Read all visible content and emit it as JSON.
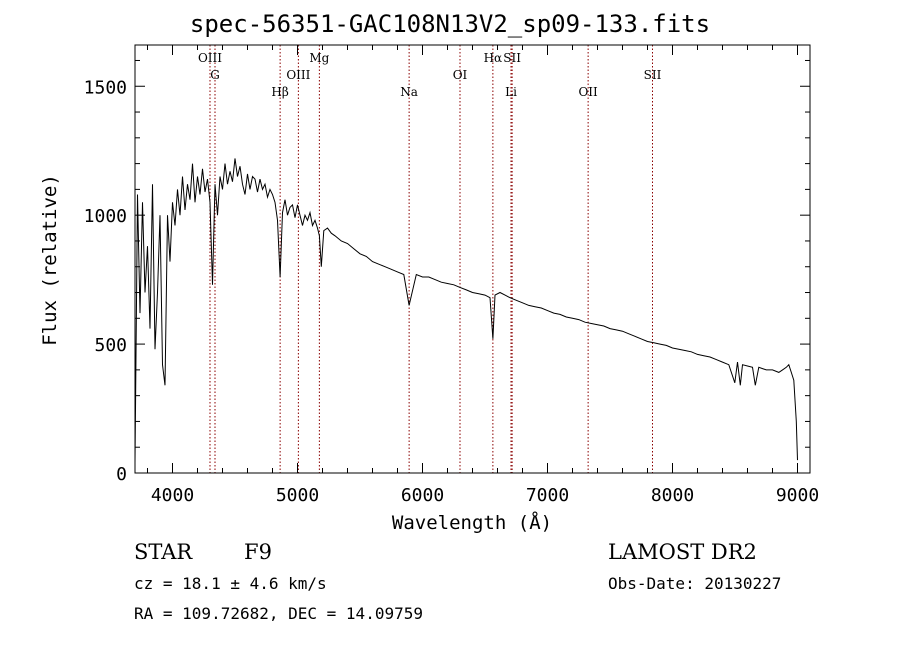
{
  "header": {
    "title": "spec-56351-GAC108N13V2_sp09-133.fits"
  },
  "info": {
    "class_label": "STAR",
    "subclass": "F9",
    "cz": "cz = 18.1 ± 4.6 km/s",
    "radec": "RA = 109.72682, DEC =  14.09759",
    "survey": "LAMOST DR2",
    "obs_date": "Obs-Date: 20130227"
  },
  "chart_data": {
    "type": "line",
    "title": "spec-56351-GAC108N13V2_sp09-133.fits",
    "xlabel": "Wavelength (Å)",
    "ylabel": "Flux (relative)",
    "xlim": [
      3700,
      9100
    ],
    "ylim": [
      0,
      1660
    ],
    "x_ticks": [
      4000,
      5000,
      6000,
      7000,
      8000,
      9000
    ],
    "y_ticks": [
      0,
      500,
      1000,
      1500
    ],
    "grid": false,
    "line_color": "#000000",
    "marker_color": "#8b0000",
    "lines": [
      {
        "name": "OIII",
        "x": 4300,
        "row": 0,
        "html": "OIII"
      },
      {
        "name": "G",
        "x": 4340,
        "row": 1,
        "html": "G"
      },
      {
        "name": "Hβ",
        "x": 4861,
        "row": 2,
        "html": "Hβ"
      },
      {
        "name": "OIII",
        "x": 5007,
        "row": 1,
        "html": "OIII"
      },
      {
        "name": "Mg",
        "x": 5175,
        "row": 0,
        "html": "Mg"
      },
      {
        "name": "Na",
        "x": 5893,
        "row": 2,
        "html": "Na"
      },
      {
        "name": "OI",
        "x": 6300,
        "row": 1,
        "html": "OI"
      },
      {
        "name": "Hα",
        "x": 6563,
        "row": 0,
        "html": "Hα"
      },
      {
        "name": "SII",
        "x": 6717,
        "row": 0,
        "html": "SII"
      },
      {
        "name": "Li",
        "x": 6708,
        "row": 2,
        "html": "Li"
      },
      {
        "name": "OII",
        "x": 7325,
        "row": 2,
        "html": "OII"
      },
      {
        "name": "SII",
        "x": 7840,
        "row": 1,
        "html": "SII"
      }
    ],
    "spectrum": {
      "x": [
        3700,
        3720,
        3740,
        3760,
        3780,
        3800,
        3820,
        3840,
        3860,
        3880,
        3900,
        3920,
        3940,
        3960,
        3980,
        4000,
        4020,
        4040,
        4060,
        4080,
        4100,
        4120,
        4140,
        4160,
        4180,
        4200,
        4220,
        4240,
        4260,
        4280,
        4300,
        4320,
        4340,
        4360,
        4380,
        4400,
        4420,
        4440,
        4460,
        4480,
        4500,
        4520,
        4540,
        4560,
        4580,
        4600,
        4620,
        4640,
        4660,
        4680,
        4700,
        4720,
        4740,
        4760,
        4780,
        4800,
        4820,
        4840,
        4861,
        4880,
        4900,
        4920,
        4940,
        4960,
        4980,
        5000,
        5020,
        5040,
        5060,
        5080,
        5100,
        5120,
        5140,
        5160,
        5175,
        5190,
        5210,
        5240,
        5270,
        5300,
        5350,
        5400,
        5450,
        5500,
        5550,
        5600,
        5650,
        5700,
        5750,
        5800,
        5850,
        5893,
        5950,
        6000,
        6050,
        6100,
        6150,
        6200,
        6250,
        6300,
        6350,
        6400,
        6450,
        6500,
        6540,
        6563,
        6580,
        6620,
        6660,
        6700,
        6750,
        6800,
        6850,
        6900,
        6950,
        7000,
        7050,
        7100,
        7150,
        7200,
        7250,
        7300,
        7350,
        7400,
        7450,
        7500,
        7550,
        7600,
        7650,
        7700,
        7750,
        7800,
        7850,
        7900,
        7950,
        8000,
        8050,
        8100,
        8150,
        8200,
        8250,
        8300,
        8350,
        8400,
        8450,
        8498,
        8520,
        8542,
        8560,
        8600,
        8640,
        8662,
        8690,
        8720,
        8750,
        8800,
        8850,
        8880,
        8910,
        8930,
        8950,
        8970,
        8990,
        9000
      ],
      "y": [
        40,
        1080,
        620,
        1050,
        700,
        880,
        560,
        1120,
        480,
        700,
        1000,
        420,
        340,
        1000,
        820,
        1050,
        960,
        1100,
        1000,
        1150,
        1020,
        1120,
        1060,
        1200,
        1050,
        1150,
        1080,
        1180,
        1090,
        1140,
        1050,
        730,
        1120,
        1000,
        1150,
        1100,
        1200,
        1120,
        1170,
        1130,
        1220,
        1150,
        1190,
        1120,
        1080,
        1160,
        1100,
        1150,
        1140,
        1090,
        1140,
        1100,
        1120,
        1070,
        1100,
        1080,
        1050,
        980,
        760,
        1010,
        1060,
        1000,
        1030,
        1040,
        990,
        1040,
        1000,
        960,
        1000,
        980,
        1010,
        960,
        980,
        950,
        920,
        800,
        940,
        950,
        930,
        920,
        900,
        890,
        870,
        850,
        840,
        820,
        810,
        800,
        790,
        780,
        770,
        650,
        770,
        760,
        760,
        750,
        740,
        735,
        730,
        720,
        710,
        700,
        695,
        690,
        680,
        520,
        690,
        700,
        690,
        680,
        670,
        660,
        650,
        645,
        640,
        630,
        620,
        615,
        605,
        600,
        595,
        585,
        580,
        575,
        570,
        560,
        555,
        550,
        540,
        530,
        520,
        510,
        505,
        500,
        495,
        485,
        480,
        475,
        470,
        460,
        455,
        450,
        440,
        430,
        420,
        350,
        430,
        340,
        420,
        415,
        410,
        340,
        410,
        405,
        400,
        400,
        390,
        400,
        410,
        420,
        390,
        360,
        200,
        50
      ]
    }
  }
}
